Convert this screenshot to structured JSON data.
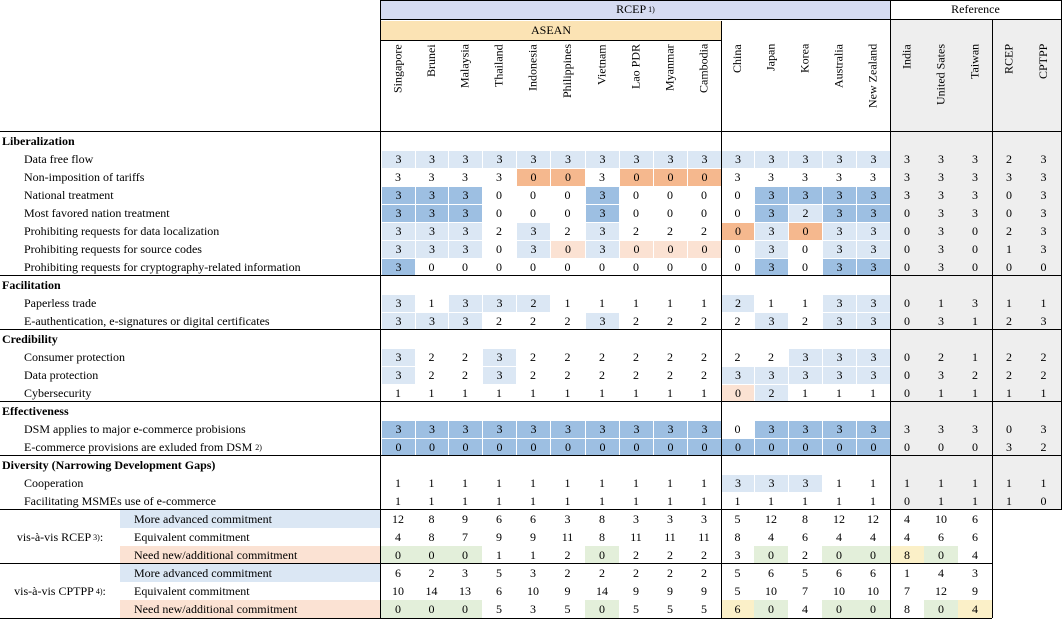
{
  "header": {
    "rcep": "RCEP",
    "rcep_note": "1)",
    "asean": "ASEAN",
    "reference": "Reference"
  },
  "columns": [
    "Singapore",
    "Brunei",
    "Malaysia",
    "Thailand",
    "Indonesia",
    "Philippines",
    "Vietnam",
    "Lao PDR",
    "Myanmar",
    "Cambodia",
    "China",
    "Japan",
    "Korea",
    "Australia",
    "New Zealand",
    "India",
    "United Sates",
    "Taiwan",
    "RCEP",
    "CPTPP"
  ],
  "colors": {
    "light_blue": "#dbe7f4",
    "blue": "#9dbfe2",
    "orange": "#f5b88e",
    "peach": "#fbe2d3",
    "green": "#e3efda",
    "yellow": "#fbf0c8",
    "header_blue": "#d6dcf2",
    "asean_yellow": "#fbe3b4",
    "ref_gray": "#eeeeee"
  },
  "sections": [
    {
      "title": "Liberalization",
      "rows": [
        {
          "label": "Data free flow",
          "values": [
            "3",
            "3",
            "3",
            "3",
            "3",
            "3",
            "3",
            "3",
            "3",
            "3",
            "3",
            "3",
            "3",
            "3",
            "3",
            "3",
            "3",
            "3",
            "2",
            "3"
          ],
          "colors": [
            "L",
            "L",
            "L",
            "L",
            "L",
            "L",
            "L",
            "L",
            "L",
            "L",
            "L",
            "L",
            "L",
            "L",
            "L",
            "",
            "",
            "",
            "",
            ""
          ]
        },
        {
          "label": "Non-imposition of tariffs",
          "values": [
            "3",
            "3",
            "3",
            "3",
            "0",
            "0",
            "3",
            "0",
            "0",
            "0",
            "3",
            "3",
            "3",
            "3",
            "3",
            "3",
            "3",
            "3",
            "3",
            "3"
          ],
          "colors": [
            "",
            "",
            "",
            "",
            "O",
            "O",
            "",
            "O",
            "O",
            "O",
            "",
            "",
            "",
            "",
            "",
            "",
            "",
            "",
            "",
            ""
          ]
        },
        {
          "label": "National treatment",
          "values": [
            "3",
            "3",
            "3",
            "0",
            "0",
            "0",
            "3",
            "0",
            "0",
            "0",
            "0",
            "3",
            "3",
            "3",
            "3",
            "3",
            "3",
            "3",
            "0",
            "3"
          ],
          "colors": [
            "B",
            "B",
            "B",
            "",
            "",
            "",
            "B",
            "",
            "",
            "",
            "",
            "B",
            "B",
            "B",
            "B",
            "",
            "",
            "",
            "",
            ""
          ]
        },
        {
          "label": "Most favored nation treatment",
          "values": [
            "3",
            "3",
            "3",
            "0",
            "0",
            "0",
            "3",
            "0",
            "0",
            "0",
            "0",
            "3",
            "2",
            "3",
            "3",
            "0",
            "3",
            "3",
            "0",
            "3"
          ],
          "colors": [
            "B",
            "B",
            "B",
            "",
            "",
            "",
            "B",
            "",
            "",
            "",
            "",
            "B",
            "L",
            "B",
            "B",
            "",
            "",
            "",
            "",
            ""
          ]
        },
        {
          "label": "Prohibiting requests for data localization",
          "values": [
            "3",
            "3",
            "3",
            "2",
            "3",
            "2",
            "3",
            "2",
            "2",
            "2",
            "0",
            "3",
            "0",
            "3",
            "3",
            "0",
            "3",
            "0",
            "2",
            "3"
          ],
          "colors": [
            "L",
            "L",
            "L",
            "",
            "L",
            "",
            "L",
            "",
            "",
            "",
            "O",
            "L",
            "O",
            "L",
            "L",
            "",
            "",
            "",
            "",
            ""
          ]
        },
        {
          "label": "Prohibiting requests for source codes",
          "values": [
            "3",
            "3",
            "3",
            "0",
            "3",
            "0",
            "3",
            "0",
            "0",
            "0",
            "0",
            "3",
            "0",
            "3",
            "3",
            "0",
            "3",
            "0",
            "1",
            "3"
          ],
          "colors": [
            "L",
            "L",
            "L",
            "",
            "L",
            "P",
            "L",
            "P",
            "P",
            "P",
            "",
            "L",
            "",
            "L",
            "L",
            "",
            "",
            "",
            "",
            ""
          ]
        },
        {
          "label": "Prohibiting requests for cryptography-related information",
          "values": [
            "3",
            "0",
            "0",
            "0",
            "0",
            "0",
            "0",
            "0",
            "0",
            "0",
            "0",
            "3",
            "0",
            "3",
            "3",
            "0",
            "3",
            "0",
            "0",
            "0"
          ],
          "colors": [
            "B",
            "",
            "",
            "",
            "",
            "",
            "",
            "",
            "",
            "",
            "",
            "B",
            "",
            "B",
            "B",
            "",
            "",
            "",
            "",
            ""
          ]
        }
      ]
    },
    {
      "title": "Facilitation",
      "rows": [
        {
          "label": "Paperless trade",
          "values": [
            "3",
            "1",
            "3",
            "3",
            "2",
            "1",
            "1",
            "1",
            "1",
            "1",
            "2",
            "1",
            "1",
            "3",
            "3",
            "0",
            "1",
            "3",
            "1",
            "1"
          ],
          "colors": [
            "L",
            "",
            "L",
            "L",
            "L",
            "",
            "",
            "",
            "",
            "",
            "L",
            "",
            "",
            "L",
            "L",
            "",
            "",
            "",
            "",
            ""
          ]
        },
        {
          "label": "E-authentication, e-signatures or digital certificates",
          "values": [
            "3",
            "3",
            "3",
            "2",
            "2",
            "2",
            "3",
            "2",
            "2",
            "2",
            "2",
            "3",
            "2",
            "3",
            "3",
            "0",
            "3",
            "1",
            "2",
            "3"
          ],
          "colors": [
            "L",
            "L",
            "L",
            "",
            "",
            "",
            "L",
            "",
            "",
            "",
            "",
            "L",
            "",
            "L",
            "L",
            "",
            "",
            "",
            "",
            ""
          ]
        }
      ]
    },
    {
      "title": "Credibility",
      "rows": [
        {
          "label": "Consumer protection",
          "values": [
            "3",
            "2",
            "2",
            "3",
            "2",
            "2",
            "2",
            "2",
            "2",
            "2",
            "2",
            "2",
            "3",
            "3",
            "3",
            "0",
            "2",
            "1",
            "2",
            "2"
          ],
          "colors": [
            "L",
            "",
            "",
            "L",
            "",
            "",
            "",
            "",
            "",
            "",
            "",
            "",
            "L",
            "L",
            "L",
            "",
            "",
            "",
            "",
            ""
          ]
        },
        {
          "label": "Data protection",
          "values": [
            "3",
            "2",
            "2",
            "3",
            "2",
            "2",
            "2",
            "2",
            "2",
            "2",
            "3",
            "3",
            "3",
            "3",
            "3",
            "0",
            "3",
            "2",
            "2",
            "2"
          ],
          "colors": [
            "L",
            "",
            "",
            "L",
            "",
            "",
            "",
            "",
            "",
            "",
            "L",
            "L",
            "L",
            "L",
            "L",
            "",
            "",
            "",
            "",
            ""
          ]
        },
        {
          "label": "Cybersecurity",
          "values": [
            "1",
            "1",
            "1",
            "1",
            "1",
            "1",
            "1",
            "1",
            "1",
            "1",
            "0",
            "2",
            "1",
            "1",
            "1",
            "0",
            "1",
            "1",
            "1",
            "1"
          ],
          "colors": [
            "",
            "",
            "",
            "",
            "",
            "",
            "",
            "",
            "",
            "",
            "P",
            "L",
            "",
            "",
            "",
            "",
            "",
            "",
            "",
            ""
          ]
        }
      ]
    },
    {
      "title": "Effectiveness",
      "rows": [
        {
          "label": "DSM applies to major e-commerce probisions",
          "values": [
            "3",
            "3",
            "3",
            "3",
            "3",
            "3",
            "3",
            "3",
            "3",
            "3",
            "0",
            "3",
            "3",
            "3",
            "3",
            "3",
            "3",
            "3",
            "0",
            "3"
          ],
          "colors": [
            "B",
            "B",
            "B",
            "B",
            "B",
            "B",
            "B",
            "B",
            "B",
            "B",
            "",
            "B",
            "B",
            "B",
            "B",
            "",
            "",
            "",
            "",
            ""
          ]
        },
        {
          "label": "E-commerce provisions are exluded from DSM",
          "note": "2)",
          "values": [
            "0",
            "0",
            "0",
            "0",
            "0",
            "0",
            "0",
            "0",
            "0",
            "0",
            "0",
            "0",
            "0",
            "0",
            "0",
            "0",
            "0",
            "0",
            "3",
            "2"
          ],
          "colors": [
            "B",
            "B",
            "B",
            "B",
            "B",
            "B",
            "B",
            "B",
            "B",
            "B",
            "B",
            "B",
            "B",
            "B",
            "B",
            "",
            "",
            "",
            "",
            ""
          ]
        }
      ]
    },
    {
      "title": "Diversity (Narrowing Development Gaps)",
      "rows": [
        {
          "label": "Cooperation",
          "values": [
            "1",
            "1",
            "1",
            "1",
            "1",
            "1",
            "1",
            "1",
            "1",
            "1",
            "3",
            "3",
            "3",
            "1",
            "1",
            "1",
            "1",
            "1",
            "1",
            "1"
          ],
          "colors": [
            "",
            "",
            "",
            "",
            "",
            "",
            "",
            "",
            "",
            "",
            "L",
            "L",
            "L",
            "",
            "",
            "",
            "",
            "",
            "",
            ""
          ]
        },
        {
          "label": "Facilitating MSMEs use of e-commerce",
          "values": [
            "1",
            "1",
            "1",
            "1",
            "1",
            "1",
            "1",
            "1",
            "1",
            "1",
            "1",
            "1",
            "1",
            "1",
            "1",
            "0",
            "1",
            "1",
            "1",
            "0"
          ],
          "colors": [
            "",
            "",
            "",
            "",
            "",
            "",
            "",
            "",
            "",
            "",
            "",
            "",
            "",
            "",
            "",
            "",
            "",
            "",
            "",
            ""
          ]
        }
      ]
    }
  ],
  "summary": [
    {
      "group": "vis-à-vis RCEP",
      "note": "3)",
      "rows": [
        {
          "label": "More advanced commitment",
          "style": "L",
          "values": [
            "12",
            "8",
            "9",
            "6",
            "6",
            "3",
            "8",
            "3",
            "3",
            "3",
            "5",
            "12",
            "8",
            "12",
            "12",
            "4",
            "10",
            "6"
          ],
          "colors": [
            "",
            "",
            "",
            "",
            "",
            "",
            "",
            "",
            "",
            "",
            "",
            "",
            "",
            "",
            "",
            "",
            "",
            ""
          ]
        },
        {
          "label": "Equivalent commitment",
          "style": "",
          "values": [
            "4",
            "8",
            "7",
            "9",
            "9",
            "11",
            "8",
            "11",
            "11",
            "11",
            "8",
            "4",
            "6",
            "4",
            "4",
            "4",
            "6",
            "6"
          ],
          "colors": [
            "",
            "",
            "",
            "",
            "",
            "",
            "",
            "",
            "",
            "",
            "",
            "",
            "",
            "",
            "",
            "",
            "",
            ""
          ]
        },
        {
          "label": "Need new/additional commitment",
          "style": "P",
          "values": [
            "0",
            "0",
            "0",
            "1",
            "1",
            "2",
            "0",
            "2",
            "2",
            "2",
            "3",
            "0",
            "2",
            "0",
            "0",
            "8",
            "0",
            "4"
          ],
          "colors": [
            "G",
            "G",
            "G",
            "",
            "",
            "",
            "G",
            "",
            "",
            "",
            "",
            "G",
            "",
            "G",
            "G",
            "Y",
            "G",
            ""
          ]
        }
      ]
    },
    {
      "group": "vis-à-vis CPTPP",
      "note": "4)",
      "rows": [
        {
          "label": "More advanced commitment",
          "style": "L",
          "values": [
            "6",
            "2",
            "3",
            "5",
            "3",
            "2",
            "2",
            "2",
            "2",
            "2",
            "5",
            "6",
            "5",
            "6",
            "6",
            "1",
            "4",
            "3"
          ],
          "colors": [
            "",
            "",
            "",
            "",
            "",
            "",
            "",
            "",
            "",
            "",
            "",
            "",
            "",
            "",
            "",
            "",
            "",
            ""
          ]
        },
        {
          "label": "Equivalent commitment",
          "style": "",
          "values": [
            "10",
            "14",
            "13",
            "6",
            "10",
            "9",
            "14",
            "9",
            "9",
            "9",
            "5",
            "10",
            "7",
            "10",
            "10",
            "7",
            "12",
            "9"
          ],
          "colors": [
            "",
            "",
            "",
            "",
            "",
            "",
            "",
            "",
            "",
            "",
            "",
            "",
            "",
            "",
            "",
            "",
            "",
            ""
          ]
        },
        {
          "label": "Need new/additional commitment",
          "style": "P",
          "values": [
            "0",
            "0",
            "0",
            "5",
            "3",
            "5",
            "0",
            "5",
            "5",
            "5",
            "6",
            "0",
            "4",
            "0",
            "0",
            "8",
            "0",
            "4"
          ],
          "colors": [
            "G",
            "G",
            "G",
            "",
            "",
            "",
            "G",
            "",
            "",
            "",
            "Y",
            "G",
            "",
            "G",
            "G",
            "",
            "G",
            "Y"
          ]
        }
      ]
    }
  ]
}
